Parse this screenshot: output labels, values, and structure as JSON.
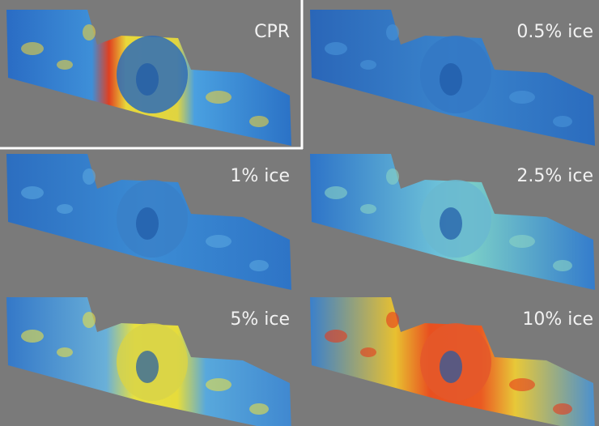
{
  "panels": [
    {
      "label": "CPR"
    },
    {
      "label": "0.5% ice"
    },
    {
      "label": "1% ice"
    },
    {
      "label": "2.5% ice"
    },
    {
      "label": "5% ice"
    },
    {
      "label": "10% ice"
    }
  ]
}
